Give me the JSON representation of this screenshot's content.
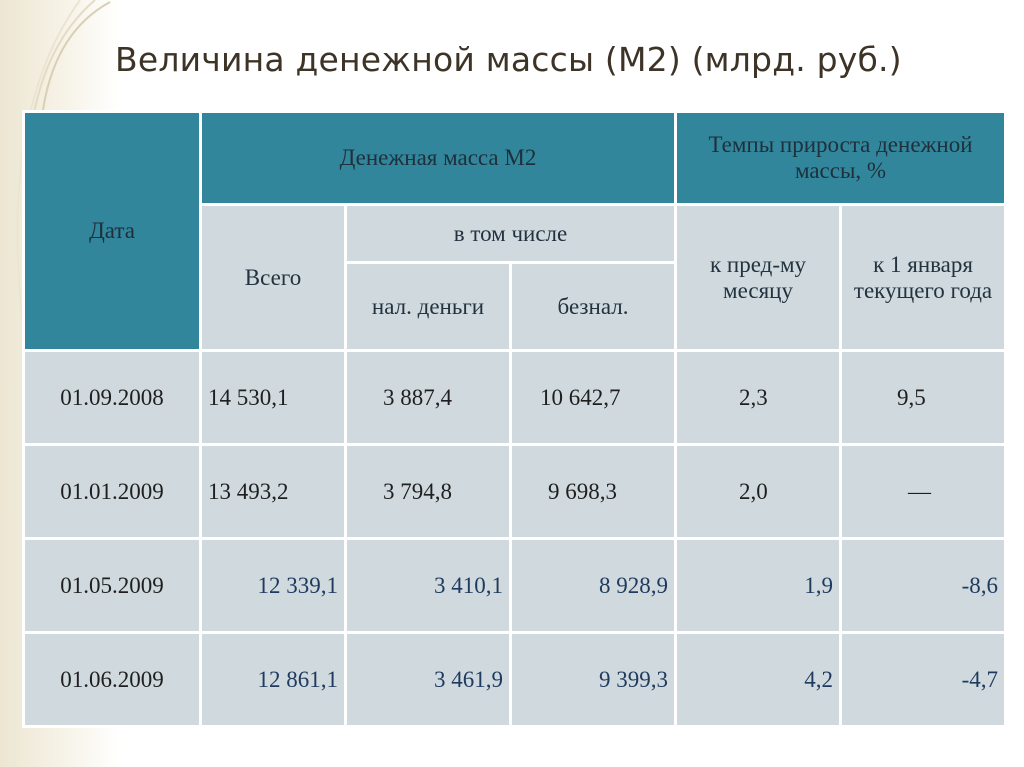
{
  "title": "Величина денежной массы (М2) (млрд. руб.)",
  "table": {
    "header": {
      "date": "Дата",
      "m2_group": "Денежная масса М2",
      "growth_group": "Темпы прироста денежной массы, %",
      "total": "Всего",
      "including": "в том числе",
      "cash": "нал. деньги",
      "noncash": "безнал.",
      "to_prev_month": "к пред-му месяцу",
      "to_jan1": "к 1 января текущего года"
    },
    "rows": [
      {
        "date": "01.09.2008",
        "total": "14 530,1",
        "cash": "3 887,4",
        "noncash": "10 642,7",
        "prev": "2,3",
        "jan": "9,5"
      },
      {
        "date": "01.01.2009",
        "total": "13 493,2",
        "cash": "3 794,8",
        "noncash": "9 698,3",
        "prev": "2,0",
        "jan": "—"
      },
      {
        "date": "01.05.2009",
        "total": "12 339,1",
        "cash": "3 410,1",
        "noncash": "8 928,9",
        "prev": "1,9",
        "jan": "-8,6"
      },
      {
        "date": "01.06.2009",
        "total": "12 861,1",
        "cash": "3 461,9",
        "noncash": "9 399,3",
        "prev": "4,2",
        "jan": "-4,7"
      }
    ]
  },
  "colors": {
    "header_dark": "#31869b",
    "header_light": "#cfd9de",
    "cell": "#cfd9de",
    "title": "#3d3327"
  }
}
